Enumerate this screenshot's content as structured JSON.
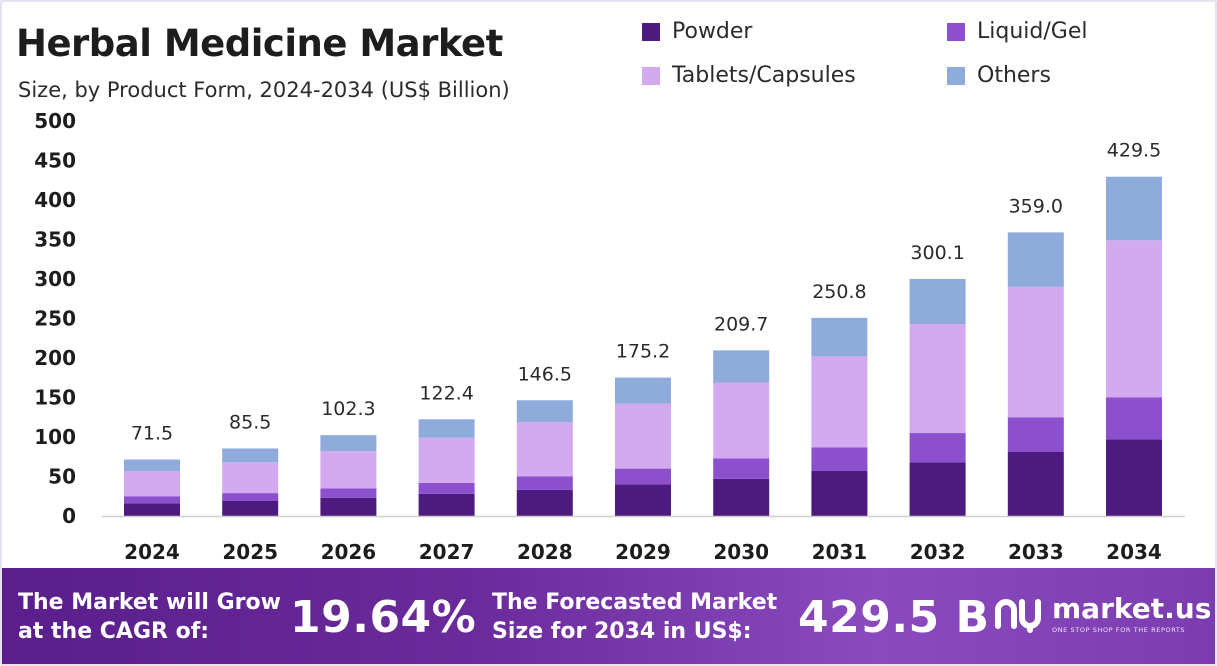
{
  "header": {
    "title": "Herbal Medicine Market",
    "subtitle": "Size, by Product Form, 2024-2034 (US$ Billion)"
  },
  "legend": [
    {
      "label": "Powder",
      "color": "#4d1a7f"
    },
    {
      "label": "Liquid/Gel",
      "color": "#8c4fce"
    },
    {
      "label": "Tablets/Capsules",
      "color": "#d3aaf0"
    },
    {
      "label": "Others",
      "color": "#8fabdc"
    }
  ],
  "chart_data": {
    "type": "bar",
    "stacked": true,
    "categories": [
      "2024",
      "2025",
      "2026",
      "2027",
      "2028",
      "2029",
      "2030",
      "2031",
      "2032",
      "2033",
      "2034"
    ],
    "series": [
      {
        "name": "Powder",
        "color": "#4d1a7f",
        "values": [
          16,
          19,
          23,
          28,
          33,
          40,
          47,
          57,
          68,
          81,
          97
        ]
      },
      {
        "name": "Liquid/Gel",
        "color": "#8c4fce",
        "values": [
          9,
          10,
          12,
          14,
          17,
          20,
          26,
          30,
          37,
          44,
          53
        ]
      },
      {
        "name": "Tablets/Capsules",
        "color": "#d3aaf0",
        "values": [
          32,
          39,
          47,
          57,
          69,
          82,
          96,
          115,
          138,
          165,
          199
        ]
      },
      {
        "name": "Others",
        "color": "#8fabdc",
        "values": [
          14.5,
          17.5,
          20.3,
          23.4,
          27.5,
          33.2,
          40.7,
          48.8,
          57.1,
          69.0,
          80.5
        ]
      }
    ],
    "totals": [
      "71.5",
      "85.5",
      "102.3",
      "122.4",
      "146.5",
      "175.2",
      "209.7",
      "250.8",
      "300.1",
      "359.0",
      "429.5"
    ],
    "yticks": [
      "0",
      "50",
      "100",
      "150",
      "200",
      "250",
      "300",
      "350",
      "400",
      "450",
      "500"
    ],
    "ylim": [
      0,
      500
    ],
    "grid": false
  },
  "footer": {
    "cagr_text_line1": "The Market will Grow",
    "cagr_text_line2": "at the CAGR of:",
    "cagr_value": "19.64%",
    "forecast_text_line1": "The Forecasted Market",
    "forecast_text_line2": "Size for 2034 in US$:",
    "forecast_value": "429.5 B",
    "brand_name": "market.us",
    "brand_tagline": "ONE STOP SHOP FOR THE REPORTS"
  }
}
